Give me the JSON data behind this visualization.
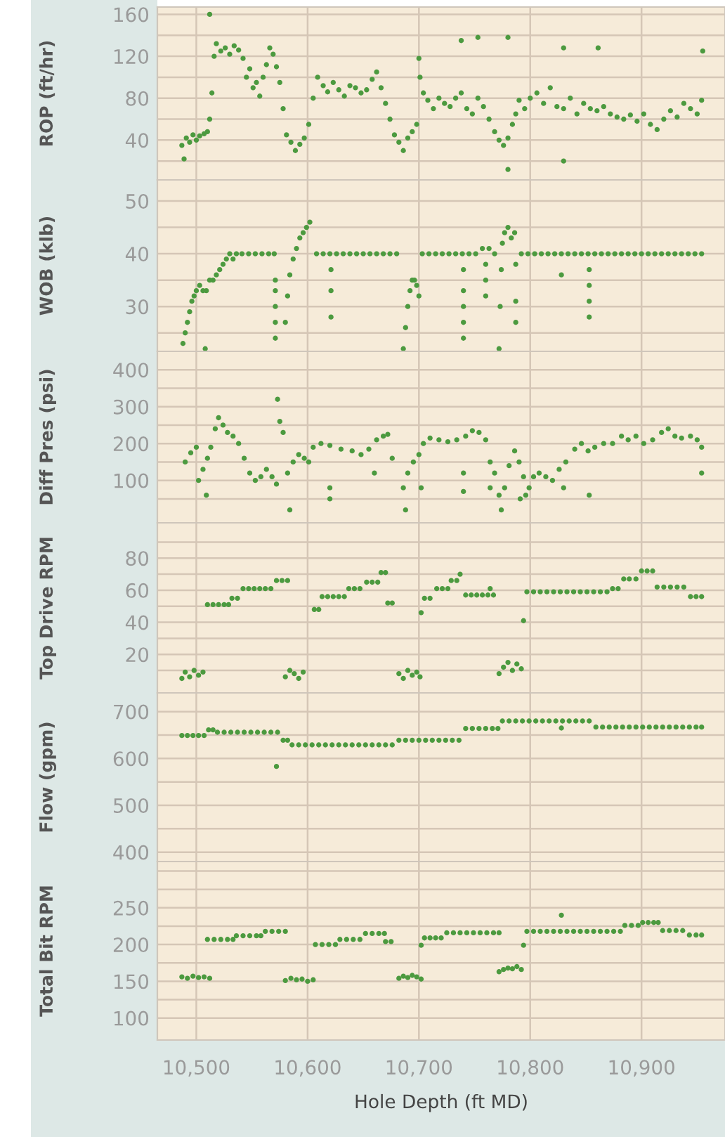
{
  "chart_data": [
    {
      "type": "scatter",
      "ylabel": "ROP (ft/hr)",
      "color": "#4c9a3f",
      "marker": "circle",
      "grid": true,
      "tick_labels": "y",
      "xlim": [
        10465,
        10975
      ],
      "ylim": [
        2,
        167
      ],
      "xticks": [
        10500,
        10600,
        10700,
        10800,
        10900
      ],
      "yticks": [
        {
          "value": 20,
          "label": null
        },
        40,
        {
          "value": 60,
          "label": null
        },
        80,
        {
          "value": 100,
          "label": null
        },
        120,
        {
          "value": 140,
          "label": null
        },
        160
      ],
      "x": [
        10487,
        10489,
        10491,
        10494,
        10497,
        10500,
        10503,
        10507,
        10510,
        10512,
        10514,
        10516,
        10518,
        10522,
        10526,
        10530,
        10534,
        10538,
        10542,
        10545,
        10548,
        10551,
        10554,
        10557,
        10560,
        10563,
        10566,
        10569,
        10572,
        10575,
        10578,
        10581,
        10585,
        10589,
        10593,
        10597,
        10601,
        10605,
        10609,
        10614,
        10618,
        10623,
        10628,
        10633,
        10638,
        10643,
        10648,
        10653,
        10658,
        10662,
        10666,
        10670,
        10674,
        10678,
        10682,
        10686,
        10690,
        10694,
        10698,
        10701,
        10704,
        10708,
        10713,
        10718,
        10723,
        10728,
        10733,
        10738,
        10743,
        10748,
        10753,
        10758,
        10763,
        10768,
        10772,
        10776,
        10780,
        10784,
        10787,
        10790,
        10795,
        10800,
        10806,
        10812,
        10818,
        10824,
        10830,
        10836,
        10842,
        10848,
        10854,
        10860,
        10866,
        10872,
        10878,
        10884,
        10890,
        10896,
        10902,
        10908,
        10914,
        10920,
        10926,
        10932,
        10938,
        10944,
        10950,
        10954,
        10512,
        10700,
        10738,
        10753,
        10780,
        10780,
        10830,
        10861,
        10955,
        10830
      ],
      "values": [
        35,
        22,
        42,
        38,
        45,
        40,
        44,
        46,
        48,
        60,
        85,
        120,
        132,
        125,
        128,
        122,
        130,
        126,
        118,
        100,
        108,
        90,
        95,
        82,
        100,
        112,
        128,
        122,
        110,
        95,
        70,
        45,
        38,
        30,
        36,
        42,
        55,
        80,
        100,
        92,
        86,
        95,
        88,
        82,
        92,
        90,
        85,
        88,
        98,
        105,
        90,
        75,
        60,
        45,
        38,
        30,
        42,
        48,
        55,
        100,
        85,
        78,
        70,
        80,
        75,
        72,
        80,
        85,
        70,
        65,
        80,
        72,
        60,
        48,
        40,
        35,
        42,
        55,
        65,
        78,
        70,
        80,
        85,
        75,
        90,
        72,
        70,
        80,
        65,
        75,
        70,
        68,
        72,
        65,
        62,
        60,
        64,
        58,
        65,
        55,
        50,
        60,
        68,
        62,
        75,
        70,
        65,
        78,
        160,
        118,
        135,
        138,
        138,
        12,
        128,
        128,
        125,
        20
      ]
    },
    {
      "type": "scatter",
      "ylabel": "WOB (klb)",
      "color": "#4c9a3f",
      "marker": "circle",
      "grid": true,
      "tick_labels": "y",
      "xlim": [
        10465,
        10975
      ],
      "ylim": [
        21.5,
        54
      ],
      "xticks": [
        10500,
        10600,
        10700,
        10800,
        10900
      ],
      "yticks": [
        {
          "value": 25,
          "label": null
        },
        30,
        {
          "value": 35,
          "label": null
        },
        40,
        {
          "value": 45,
          "label": null
        },
        50
      ],
      "x": [
        10488,
        10490,
        10492,
        10494,
        10496,
        10498,
        10500,
        10503,
        10506,
        10509,
        10512,
        10515,
        10518,
        10521,
        10524,
        10527,
        10530,
        10533,
        10536,
        10541,
        10547,
        10553,
        10559,
        10565,
        10570,
        10580,
        10582,
        10584,
        10587,
        10590,
        10593,
        10596,
        10599,
        10602,
        10608,
        10614,
        10620,
        10626,
        10632,
        10638,
        10644,
        10650,
        10656,
        10662,
        10668,
        10674,
        10680,
        10686,
        10688,
        10690,
        10692,
        10694,
        10696,
        10698,
        10700,
        10703,
        10709,
        10715,
        10721,
        10727,
        10733,
        10739,
        10745,
        10751,
        10757,
        10763,
        10768,
        10772,
        10773,
        10774,
        10775,
        10777,
        10780,
        10783,
        10786,
        10792,
        10798,
        10804,
        10810,
        10816,
        10822,
        10828,
        10834,
        10840,
        10846,
        10852,
        10858,
        10864,
        10870,
        10876,
        10882,
        10888,
        10894,
        10900,
        10906,
        10912,
        10918,
        10924,
        10930,
        10936,
        10942,
        10948,
        10954,
        10571,
        10571,
        10571,
        10571,
        10571,
        10621,
        10621,
        10621,
        10740,
        10740,
        10740,
        10740,
        10740,
        10760,
        10760,
        10760,
        10787,
        10787,
        10787,
        10828,
        10853,
        10853,
        10853,
        10853,
        10508
      ],
      "values": [
        23,
        25,
        27,
        29,
        31,
        32,
        33,
        34,
        33,
        33,
        35,
        35,
        36,
        37,
        38,
        39,
        40,
        39,
        40,
        40,
        40,
        40,
        40,
        40,
        40,
        27,
        32,
        36,
        39,
        41,
        43,
        44,
        45,
        46,
        40,
        40,
        40,
        40,
        40,
        40,
        40,
        40,
        40,
        40,
        40,
        40,
        40,
        22,
        26,
        30,
        33,
        35,
        35,
        34,
        32,
        40,
        40,
        40,
        40,
        40,
        40,
        40,
        40,
        40,
        41,
        41,
        40,
        22,
        30,
        37,
        42,
        44,
        45,
        43,
        44,
        40,
        40,
        40,
        40,
        40,
        40,
        40,
        40,
        40,
        40,
        40,
        40,
        40,
        40,
        40,
        40,
        40,
        40,
        40,
        40,
        40,
        40,
        40,
        40,
        40,
        40,
        40,
        40,
        35,
        33,
        30,
        27,
        24,
        37,
        33,
        28,
        37,
        33,
        30,
        27,
        24,
        38,
        35,
        32,
        38,
        31,
        27,
        36,
        37,
        34,
        31,
        28,
        22
      ]
    },
    {
      "type": "scatter",
      "ylabel": "Diff Pres (psi)",
      "color": "#4c9a3f",
      "marker": "circle",
      "grid": true,
      "tick_labels": "y",
      "xlim": [
        10465,
        10975
      ],
      "ylim": [
        -15,
        450
      ],
      "xticks": [
        10500,
        10600,
        10700,
        10800,
        10900
      ],
      "yticks": [
        {
          "value": 50,
          "label": null
        },
        100,
        {
          "value": 150,
          "label": null
        },
        200,
        {
          "value": 250,
          "label": null
        },
        300,
        {
          "value": 350,
          "label": null
        },
        400
      ],
      "x": [
        10490,
        10495,
        10500,
        10502,
        10506,
        10510,
        10513,
        10517,
        10520,
        10524,
        10528,
        10533,
        10538,
        10543,
        10548,
        10553,
        10558,
        10563,
        10568,
        10572,
        10573,
        10575,
        10578,
        10582,
        10584,
        10587,
        10592,
        10597,
        10601,
        10605,
        10612,
        10620,
        10630,
        10640,
        10648,
        10655,
        10662,
        10668,
        10672,
        10676,
        10686,
        10688,
        10690,
        10695,
        10700,
        10704,
        10710,
        10718,
        10726,
        10734,
        10742,
        10748,
        10754,
        10760,
        10764,
        10768,
        10772,
        10774,
        10777,
        10781,
        10786,
        10790,
        10794,
        10796,
        10799,
        10803,
        10808,
        10814,
        10820,
        10826,
        10832,
        10840,
        10846,
        10852,
        10858,
        10866,
        10874,
        10882,
        10888,
        10895,
        10902,
        10910,
        10918,
        10924,
        10930,
        10936,
        10944,
        10950,
        10954,
        10509,
        10620,
        10620,
        10660,
        10702,
        10740,
        10740,
        10764,
        10791,
        10830,
        10853,
        10954
      ],
      "values": [
        150,
        175,
        190,
        100,
        130,
        160,
        190,
        240,
        270,
        250,
        230,
        220,
        200,
        160,
        120,
        100,
        110,
        130,
        110,
        90,
        320,
        260,
        230,
        120,
        20,
        150,
        170,
        160,
        150,
        190,
        200,
        195,
        185,
        180,
        170,
        185,
        210,
        220,
        225,
        160,
        80,
        20,
        120,
        150,
        170,
        200,
        215,
        210,
        205,
        210,
        220,
        235,
        230,
        210,
        150,
        120,
        60,
        20,
        80,
        140,
        180,
        150,
        110,
        60,
        80,
        110,
        120,
        110,
        100,
        130,
        150,
        185,
        200,
        180,
        190,
        200,
        200,
        220,
        210,
        220,
        200,
        210,
        230,
        240,
        220,
        215,
        220,
        210,
        190,
        60,
        80,
        50,
        120,
        80,
        70,
        120,
        80,
        50,
        80,
        60,
        120
      ]
    },
    {
      "type": "scatter",
      "ylabel": "Top Drive RPM",
      "color": "#4c9a3f",
      "marker": "circle",
      "grid": true,
      "tick_labels": "y",
      "xlim": [
        10465,
        10975
      ],
      "ylim": [
        -4,
        102
      ],
      "xticks": [
        10500,
        10600,
        10700,
        10800,
        10900
      ],
      "yticks": [
        {
          "value": 10,
          "label": null
        },
        20,
        {
          "value": 30,
          "label": null
        },
        40,
        {
          "value": 50,
          "label": null
        },
        60,
        {
          "value": 70,
          "label": null
        },
        80,
        {
          "value": 90,
          "label": null
        }
      ],
      "x": [
        10487,
        10490,
        10494,
        10498,
        10502,
        10506,
        10510,
        10515,
        10520,
        10525,
        10529,
        10532,
        10537,
        10542,
        10547,
        10552,
        10557,
        10562,
        10567,
        10572,
        10577,
        10582,
        10580,
        10584,
        10588,
        10592,
        10596,
        10606,
        10610,
        10613,
        10618,
        10623,
        10628,
        10633,
        10637,
        10642,
        10647,
        10653,
        10658,
        10663,
        10666,
        10670,
        10672,
        10676,
        10682,
        10686,
        10690,
        10694,
        10698,
        10701,
        10702,
        10705,
        10710,
        10716,
        10721,
        10726,
        10729,
        10734,
        10737,
        10742,
        10747,
        10752,
        10757,
        10762,
        10767,
        10764,
        10772,
        10776,
        10780,
        10784,
        10788,
        10792,
        10794,
        10797,
        10803,
        10809,
        10815,
        10821,
        10827,
        10833,
        10839,
        10845,
        10851,
        10857,
        10863,
        10869,
        10874,
        10879,
        10884,
        10889,
        10895,
        10900,
        10905,
        10910,
        10914,
        10920,
        10926,
        10932,
        10938,
        10944,
        10949,
        10954
      ],
      "values": [
        5,
        9,
        6,
        10,
        7,
        9,
        51,
        51,
        51,
        51,
        51,
        55,
        55,
        61,
        61,
        61,
        61,
        61,
        61,
        66,
        66,
        66,
        6,
        10,
        8,
        5,
        9,
        48,
        48,
        56,
        56,
        56,
        56,
        56,
        61,
        61,
        61,
        65,
        65,
        65,
        71,
        71,
        52,
        52,
        8,
        5,
        10,
        7,
        9,
        6,
        46,
        55,
        55,
        61,
        61,
        61,
        66,
        66,
        70,
        57,
        57,
        57,
        57,
        57,
        57,
        61,
        8,
        12,
        15,
        10,
        14,
        11,
        41,
        59,
        59,
        59,
        59,
        59,
        59,
        59,
        59,
        59,
        59,
        59,
        59,
        59,
        61,
        61,
        67,
        67,
        67,
        72,
        72,
        72,
        62,
        62,
        62,
        62,
        62,
        56,
        56,
        56
      ]
    },
    {
      "type": "scatter",
      "ylabel": "Flow (gpm)",
      "color": "#4c9a3f",
      "marker": "circle",
      "grid": true,
      "tick_labels": "y",
      "xlim": [
        10465,
        10975
      ],
      "ylim": [
        380,
        740
      ],
      "xticks": [
        10500,
        10600,
        10700,
        10800,
        10900
      ],
      "yticks": [
        400,
        {
          "value": 450,
          "label": null
        },
        500,
        {
          "value": 550,
          "label": null
        },
        600,
        {
          "value": 650,
          "label": null
        },
        700
      ],
      "x": [
        10487,
        10492,
        10497,
        10502,
        10507,
        10511,
        10515,
        10519,
        10525,
        10531,
        10537,
        10543,
        10549,
        10555,
        10561,
        10567,
        10573,
        10578,
        10582,
        10586,
        10592,
        10598,
        10604,
        10610,
        10616,
        10622,
        10628,
        10634,
        10640,
        10646,
        10652,
        10658,
        10664,
        10670,
        10676,
        10682,
        10688,
        10694,
        10700,
        10706,
        10712,
        10718,
        10724,
        10730,
        10736,
        10742,
        10748,
        10754,
        10760,
        10766,
        10771,
        10775,
        10781,
        10787,
        10793,
        10799,
        10805,
        10811,
        10817,
        10823,
        10829,
        10835,
        10841,
        10847,
        10853,
        10859,
        10865,
        10871,
        10877,
        10883,
        10889,
        10895,
        10901,
        10907,
        10913,
        10919,
        10925,
        10931,
        10937,
        10943,
        10949,
        10954,
        10572,
        10828
      ],
      "values": [
        649,
        649,
        649,
        649,
        649,
        661,
        661,
        656,
        656,
        656,
        656,
        656,
        656,
        656,
        656,
        656,
        656,
        639,
        639,
        629,
        629,
        629,
        629,
        629,
        629,
        629,
        629,
        629,
        629,
        629,
        629,
        629,
        629,
        629,
        629,
        639,
        639,
        639,
        639,
        639,
        639,
        639,
        639,
        639,
        639,
        664,
        664,
        664,
        664,
        664,
        664,
        680,
        680,
        680,
        680,
        680,
        680,
        680,
        680,
        680,
        680,
        680,
        680,
        680,
        680,
        667,
        667,
        667,
        667,
        667,
        667,
        667,
        667,
        667,
        667,
        667,
        667,
        667,
        667,
        667,
        667,
        667,
        583,
        665
      ]
    },
    {
      "type": "scatter",
      "ylabel": "Total Bit RPM",
      "xlabel": "Hole Depth (ft MD)",
      "color": "#4c9a3f",
      "marker": "circle",
      "grid": true,
      "xlim": [
        10465,
        10975
      ],
      "ylim": [
        70,
        313
      ],
      "xticks": [
        {
          "value": 10500,
          "label": "10,500"
        },
        {
          "value": 10600,
          "label": "10,600"
        },
        {
          "value": 10700,
          "label": "10,700"
        },
        {
          "value": 10800,
          "label": "10,800"
        },
        {
          "value": 10900,
          "label": "10,900"
        }
      ],
      "yticks": [
        100,
        {
          "value": 125,
          "label": null
        },
        150,
        {
          "value": 175,
          "label": null
        },
        200,
        {
          "value": 225,
          "label": null
        },
        250,
        {
          "value": 275,
          "label": null
        },
        {
          "value": 300,
          "label": null
        }
      ],
      "x": [
        10487,
        10492,
        10497,
        10502,
        10507,
        10512,
        10510,
        10516,
        10522,
        10528,
        10533,
        10536,
        10542,
        10548,
        10554,
        10558,
        10562,
        10568,
        10574,
        10580,
        10580,
        10585,
        10590,
        10595,
        10600,
        10605,
        10607,
        10613,
        10619,
        10625,
        10629,
        10635,
        10641,
        10647,
        10652,
        10658,
        10664,
        10669,
        10670,
        10675,
        10682,
        10686,
        10690,
        10694,
        10698,
        10702,
        10702,
        10705,
        10710,
        10715,
        10720,
        10725,
        10731,
        10737,
        10743,
        10749,
        10755,
        10761,
        10767,
        10772,
        10772,
        10776,
        10780,
        10784,
        10788,
        10792,
        10794,
        10797,
        10803,
        10809,
        10815,
        10821,
        10827,
        10833,
        10839,
        10845,
        10851,
        10857,
        10863,
        10869,
        10875,
        10881,
        10885,
        10891,
        10897,
        10901,
        10906,
        10911,
        10915,
        10919,
        10925,
        10931,
        10937,
        10943,
        10949,
        10954,
        10828
      ],
      "values": [
        156,
        154,
        157,
        155,
        156,
        154,
        207,
        207,
        207,
        207,
        207,
        212,
        212,
        212,
        212,
        212,
        218,
        218,
        218,
        218,
        151,
        154,
        152,
        153,
        150,
        152,
        200,
        200,
        200,
        200,
        207,
        207,
        207,
        207,
        215,
        215,
        215,
        215,
        204,
        204,
        154,
        157,
        155,
        158,
        156,
        153,
        199,
        209,
        209,
        209,
        209,
        216,
        216,
        216,
        216,
        216,
        216,
        216,
        216,
        216,
        163,
        166,
        168,
        167,
        170,
        166,
        199,
        218,
        218,
        218,
        218,
        218,
        218,
        218,
        218,
        218,
        218,
        218,
        218,
        218,
        218,
        218,
        226,
        226,
        226,
        230,
        230,
        230,
        230,
        219,
        219,
        219,
        219,
        213,
        213,
        213,
        240
      ]
    }
  ]
}
